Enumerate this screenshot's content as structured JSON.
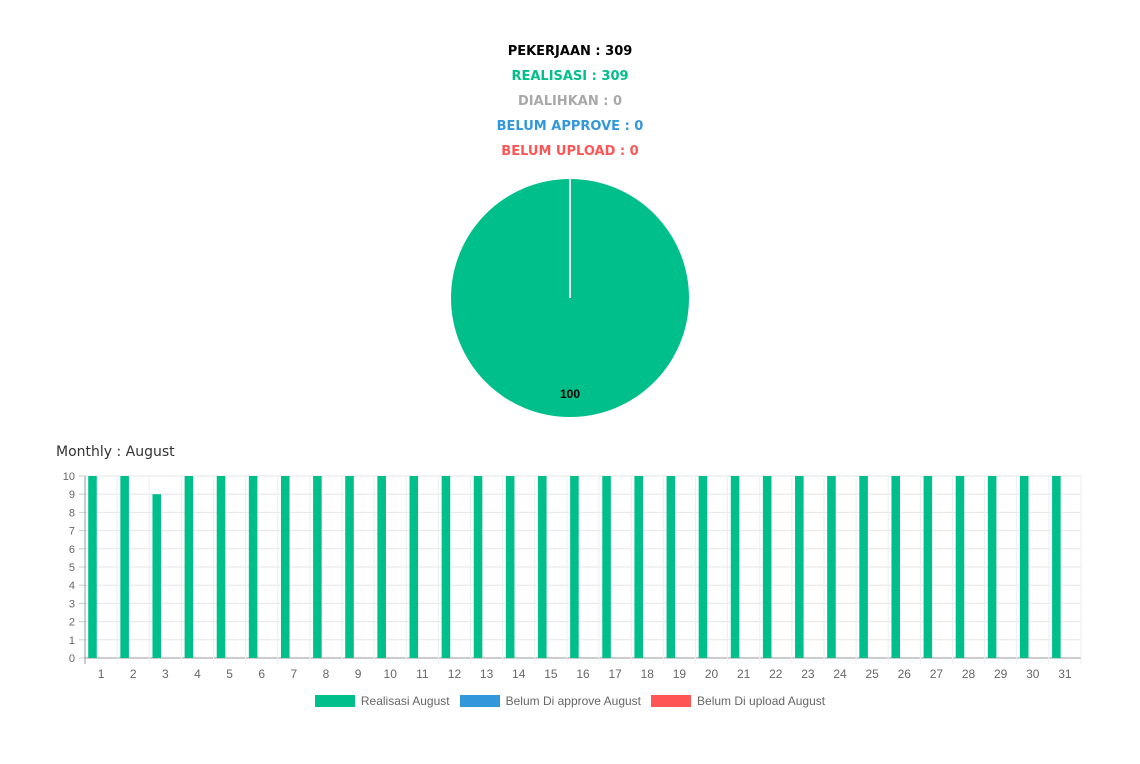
{
  "summary": {
    "pekerjaan": "PEKERJAAN : 309",
    "realisasi": "REALISASI : 309",
    "dialihkan": "DIALIHKAN : 0",
    "belum_approve": "BELUM APPROVE : 0",
    "belum_upload": "BELUM UPLOAD : 0"
  },
  "colors": {
    "pekerjaan": "#000000",
    "realisasi": "#00bf8a",
    "dialihkan": "#a9a9a9",
    "belum_approve": "#3398db",
    "belum_upload": "#ff5555"
  },
  "monthly_title": "Monthly : August",
  "chart_data": [
    {
      "type": "pie",
      "slices": [
        {
          "label": "Realisasi",
          "value": 100,
          "color": "#00bf8a"
        }
      ],
      "data_label": "100"
    },
    {
      "type": "bar",
      "title": "Monthly : August",
      "categories": [
        "1",
        "2",
        "3",
        "4",
        "5",
        "6",
        "7",
        "8",
        "9",
        "10",
        "11",
        "12",
        "13",
        "14",
        "15",
        "16",
        "17",
        "18",
        "19",
        "20",
        "21",
        "22",
        "23",
        "24",
        "25",
        "26",
        "27",
        "28",
        "29",
        "30",
        "31"
      ],
      "series": [
        {
          "name": "Realisasi August",
          "color": "#00bf8a",
          "values": [
            10,
            10,
            9,
            10,
            10,
            10,
            10,
            10,
            10,
            10,
            10,
            10,
            10,
            10,
            10,
            10,
            10,
            10,
            10,
            10,
            10,
            10,
            10,
            10,
            10,
            10,
            10,
            10,
            10,
            10,
            10
          ]
        },
        {
          "name": "Belum Di approve August",
          "color": "#3398db",
          "values": [
            0,
            0,
            0,
            0,
            0,
            0,
            0,
            0,
            0,
            0,
            0,
            0,
            0,
            0,
            0,
            0,
            0,
            0,
            0,
            0,
            0,
            0,
            0,
            0,
            0,
            0,
            0,
            0,
            0,
            0,
            0
          ]
        },
        {
          "name": "Belum Di upload August",
          "color": "#ff5555",
          "values": [
            0,
            0,
            0,
            0,
            0,
            0,
            0,
            0,
            0,
            0,
            0,
            0,
            0,
            0,
            0,
            0,
            0,
            0,
            0,
            0,
            0,
            0,
            0,
            0,
            0,
            0,
            0,
            0,
            0,
            0,
            0
          ]
        }
      ],
      "yticks": [
        "0",
        "1",
        "2",
        "3",
        "4",
        "5",
        "6",
        "7",
        "8",
        "9",
        "10"
      ],
      "ylim": [
        0,
        10
      ],
      "grid": true,
      "legend": "bottom"
    }
  ]
}
